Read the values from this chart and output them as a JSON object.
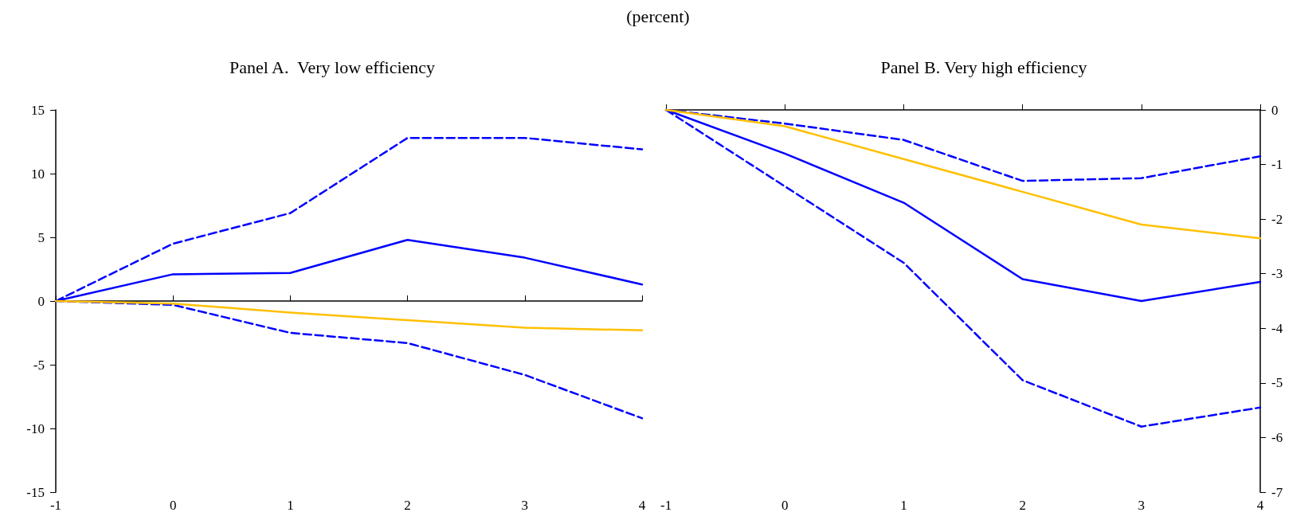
{
  "chart_data": [
    {
      "type": "line",
      "title": "Panel A.  Very low efficiency",
      "annotations": [
        "(percent)"
      ],
      "x": [
        -1,
        0,
        1,
        2,
        3,
        4
      ],
      "xlim": [
        -1,
        4
      ],
      "xticks": [
        -1,
        0,
        1,
        2,
        3,
        4
      ],
      "ylim": [
        -15,
        15
      ],
      "yticks": [
        -15,
        -10,
        -5,
        0,
        5,
        10,
        15
      ],
      "marker": "none",
      "series": [
        {
          "color": "#0000ff",
          "line_style": "dashed",
          "values": [
            0,
            4.5,
            6.9,
            12.8,
            12.8,
            11.9
          ]
        },
        {
          "color": "#0000ff",
          "line_style": "solid",
          "values": [
            0,
            2.1,
            2.2,
            4.8,
            3.4,
            1.3
          ]
        },
        {
          "color": "#0000ff",
          "line_style": "dashed",
          "values": [
            0,
            -0.3,
            -2.5,
            -3.3,
            -5.8,
            -9.2
          ]
        },
        {
          "color": "#ffc000",
          "line_style": "solid",
          "values": [
            0,
            -0.2,
            -0.9,
            -1.5,
            -2.1,
            -2.3
          ]
        }
      ]
    },
    {
      "type": "line",
      "title": "Panel B. Very high efficiency",
      "x": [
        -1,
        0,
        1,
        2,
        3,
        4
      ],
      "xlim": [
        -1,
        4
      ],
      "xticks": [
        -1,
        0,
        1,
        2,
        3,
        4
      ],
      "y2lim": [
        -7,
        0
      ],
      "y2ticks": [
        -7,
        -6,
        -5,
        -4,
        -3,
        -2,
        -1,
        0
      ],
      "marker": "none",
      "series": [
        {
          "color": "#0000ff",
          "line_style": "dashed",
          "axis": "y2",
          "values": [
            0,
            -0.25,
            -0.55,
            -1.3,
            -1.25,
            -0.85
          ]
        },
        {
          "color": "#0000ff",
          "line_style": "solid",
          "axis": "y2",
          "values": [
            0,
            -0.8,
            -1.7,
            -3.1,
            -3.5,
            -3.15
          ]
        },
        {
          "color": "#0000ff",
          "line_style": "dashed",
          "axis": "y2",
          "values": [
            0,
            -1.4,
            -2.8,
            -4.95,
            -5.8,
            -5.45
          ]
        },
        {
          "color": "#ffc000",
          "line_style": "solid",
          "axis": "y2",
          "values": [
            0,
            -0.3,
            -0.9,
            -1.5,
            -2.1,
            -2.35
          ]
        }
      ]
    }
  ]
}
